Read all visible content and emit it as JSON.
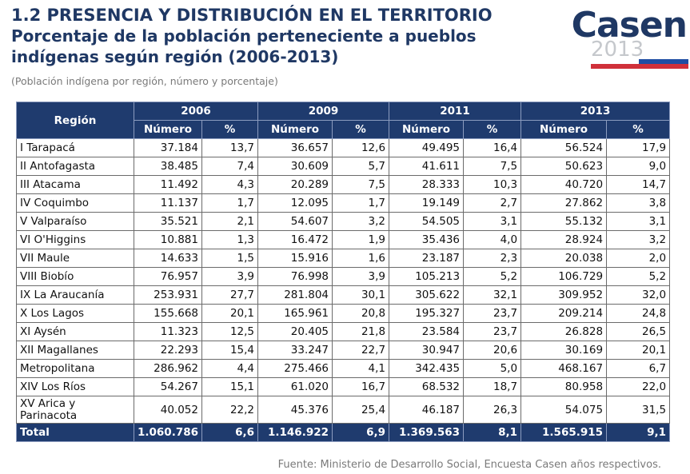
{
  "header": {
    "title_line1": "1.2 PRESENCIA Y DISTRIBUCIÓN EN EL TERRITORIO",
    "title_line2": "Porcentaje de la población perteneciente a pueblos",
    "title_line3": "indígenas según región (2006-2013)",
    "subtitle": "(Población indígena por región, número y porcentaje)"
  },
  "logo": {
    "word": "Casen",
    "year": "2013",
    "colors": {
      "primary": "#1f3864",
      "accent_blue": "#1f4ea3",
      "accent_red": "#d0303a"
    }
  },
  "table": {
    "region_header": "Región",
    "years": [
      "2006",
      "2009",
      "2011",
      "2013"
    ],
    "sub_headers": {
      "number": "Número",
      "percent": "%"
    },
    "rows": [
      {
        "region": "I Tarapacá",
        "values": [
          "37.184",
          "13,7",
          "36.657",
          "12,6",
          "49.495",
          "16,4",
          "56.524",
          "17,9"
        ]
      },
      {
        "region": "II Antofagasta",
        "values": [
          "38.485",
          "7,4",
          "30.609",
          "5,7",
          "41.611",
          "7,5",
          "50.623",
          "9,0"
        ]
      },
      {
        "region": "III Atacama",
        "values": [
          "11.492",
          "4,3",
          "20.289",
          "7,5",
          "28.333",
          "10,3",
          "40.720",
          "14,7"
        ]
      },
      {
        "region": "IV Coquimbo",
        "values": [
          "11.137",
          "1,7",
          "12.095",
          "1,7",
          "19.149",
          "2,7",
          "27.862",
          "3,8"
        ]
      },
      {
        "region": "V Valparaíso",
        "values": [
          "35.521",
          "2,1",
          "54.607",
          "3,2",
          "54.505",
          "3,1",
          "55.132",
          "3,1"
        ]
      },
      {
        "region": "VI O'Higgins",
        "values": [
          "10.881",
          "1,3",
          "16.472",
          "1,9",
          "35.436",
          "4,0",
          "28.924",
          "3,2"
        ]
      },
      {
        "region": "VII Maule",
        "values": [
          "14.633",
          "1,5",
          "15.916",
          "1,6",
          "23.187",
          "2,3",
          "20.038",
          "2,0"
        ]
      },
      {
        "region": "VIII Biobío",
        "values": [
          "76.957",
          "3,9",
          "76.998",
          "3,9",
          "105.213",
          "5,2",
          "106.729",
          "5,2"
        ]
      },
      {
        "region": "IX La Araucanía",
        "values": [
          "253.931",
          "27,7",
          "281.804",
          "30,1",
          "305.622",
          "32,1",
          "309.952",
          "32,0"
        ]
      },
      {
        "region": "X Los Lagos",
        "values": [
          "155.668",
          "20,1",
          "165.961",
          "20,8",
          "195.327",
          "23,7",
          "209.214",
          "24,8"
        ]
      },
      {
        "region": "XI Aysén",
        "values": [
          "11.323",
          "12,5",
          "20.405",
          "21,8",
          "23.584",
          "23,7",
          "26.828",
          "26,5"
        ]
      },
      {
        "region": "XII Magallanes",
        "values": [
          "22.293",
          "15,4",
          "33.247",
          "22,7",
          "30.947",
          "20,6",
          "30.169",
          "20,1"
        ]
      },
      {
        "region": "Metropolitana",
        "values": [
          "286.962",
          "4,4",
          "275.466",
          "4,1",
          "342.435",
          "5,0",
          "468.167",
          "6,7"
        ]
      },
      {
        "region": "XIV Los Ríos",
        "values": [
          "54.267",
          "15,1",
          "61.020",
          "16,7",
          "68.532",
          "18,7",
          "80.958",
          "22,0"
        ]
      },
      {
        "region": "XV Arica y Parinacota",
        "values": [
          "40.052",
          "22,2",
          "45.376",
          "25,4",
          "46.187",
          "26,3",
          "54.075",
          "31,5"
        ]
      }
    ],
    "total": {
      "label": "Total",
      "values": [
        "1.060.786",
        "6,6",
        "1.146.922",
        "6,9",
        "1.369.563",
        "8,1",
        "1.565.915",
        "9,1"
      ]
    }
  },
  "footer": {
    "source": "Fuente: Ministerio de Desarrollo Social, Encuesta Casen años respectivos."
  }
}
